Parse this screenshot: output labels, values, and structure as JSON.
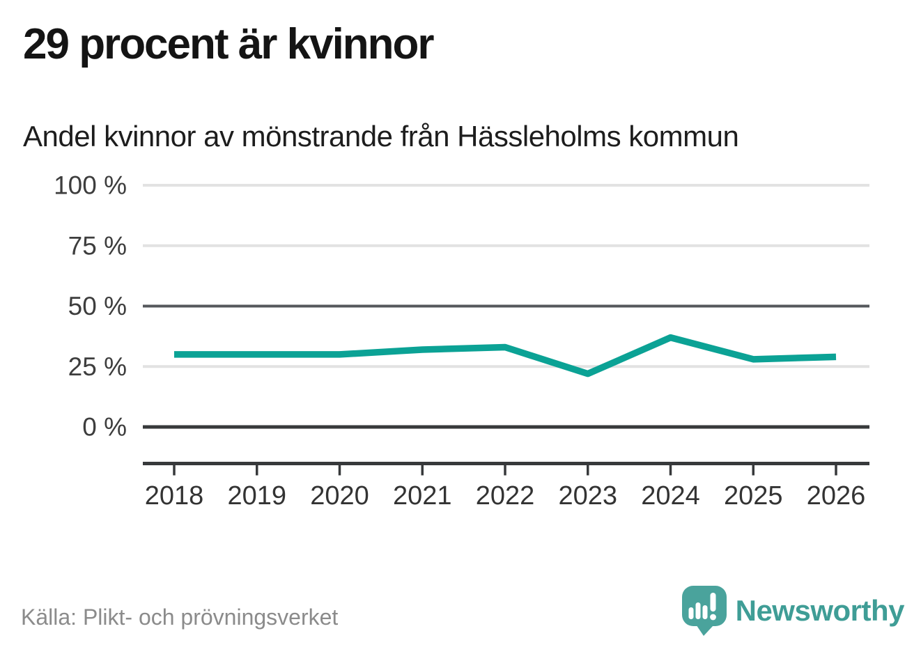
{
  "header": {
    "title": "29 procent är kvinnor",
    "subtitle": "Andel kvinnor av mönstrande från Hässleholms kommun"
  },
  "chart_data": {
    "type": "line",
    "x": [
      "2018",
      "2019",
      "2020",
      "2021",
      "2022",
      "2023",
      "2024",
      "2025",
      "2026"
    ],
    "series": [
      {
        "name": "Andel kvinnor av mönstrande",
        "values": [
          30,
          30,
          30,
          32,
          33,
          22,
          37,
          28,
          29
        ]
      }
    ],
    "title": "29 procent är kvinnor",
    "subtitle": "Andel kvinnor av mönstrande från Hässleholms kommun",
    "xlabel": "",
    "ylabel": "",
    "ylim": [
      0,
      100
    ],
    "yticks": [
      0,
      25,
      50,
      75,
      100
    ],
    "ytick_labels": [
      "0 %",
      "25 %",
      "50 %",
      "75 %",
      "100 %"
    ],
    "grid": true,
    "legend": false,
    "line_color": "#0ba295",
    "grid_color_light": "#e2e2e2",
    "grid_color_mid": "#55585c",
    "axis_color": "#37393b",
    "tick_label_color": "#3d3d3d"
  },
  "footer": {
    "source": "Källa: Plikt- och prövningsverket",
    "brand": "Newsworthy",
    "brand_color": "#3f9d96",
    "logo_mark_color": "#4aa39c",
    "logo_icon": "newsworthy-speech-bubble-bars-icon"
  }
}
